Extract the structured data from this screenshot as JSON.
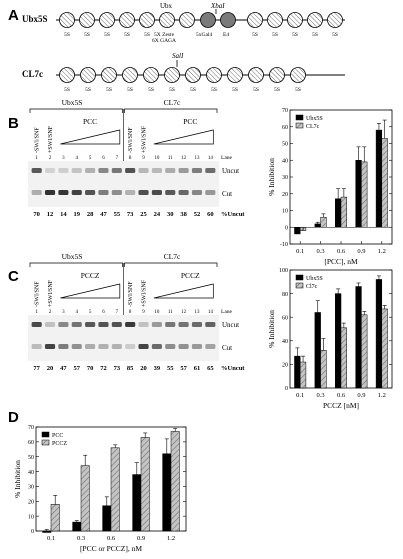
{
  "panel_a": {
    "letter": "A",
    "ubx5s": {
      "name": "Ubx5S",
      "ubx_label": "Ubx",
      "site_label": "XbaI",
      "nuc_label": "5S",
      "ubx_sub_labels": [
        "5X Zeste",
        "6X GAGA",
        "5xGal4",
        "E4"
      ]
    },
    "cl7c": {
      "name": "CL7c",
      "site_label": "SalI",
      "nuc_label": "5S"
    }
  },
  "panel_b": {
    "letter": "B",
    "gel": {
      "group_left": "Ubx5S",
      "group_right": "CL7c",
      "minus_swi": "-SWI/SNF",
      "plus_swi": "+SWI/SNF",
      "titrant": "PCC",
      "lane_word": "Lane",
      "lanes": [
        "1",
        "2",
        "3",
        "4",
        "5",
        "6",
        "7",
        "8",
        "9",
        "10",
        "11",
        "12",
        "13",
        "14"
      ],
      "band_uncut": "Uncut",
      "band_cut": "Cut",
      "pct_label": "%Uncut",
      "pct_values": [
        "70",
        "12",
        "14",
        "19",
        "28",
        "47",
        "55",
        "73",
        "25",
        "24",
        "30",
        "38",
        "52",
        "60"
      ]
    }
  },
  "panel_c": {
    "letter": "C",
    "gel": {
      "group_left": "Ubx5S",
      "group_right": "CL7c",
      "minus_swi": "-SWI/SNF",
      "plus_swi": "+SWI/SNF",
      "titrant": "PCCZ",
      "lane_word": "Lane",
      "lanes": [
        "1",
        "2",
        "3",
        "4",
        "5",
        "6",
        "7",
        "8",
        "9",
        "10",
        "11",
        "12",
        "13",
        "14"
      ],
      "band_uncut": "Uncut",
      "band_cut": "Cut",
      "pct_label": "%Uncut",
      "pct_values": [
        "77",
        "20",
        "47",
        "57",
        "70",
        "72",
        "73",
        "85",
        "20",
        "39",
        "55",
        "57",
        "61",
        "65"
      ]
    }
  },
  "panel_d": {
    "letter": "D"
  },
  "chart_data": [
    {
      "type": "bar",
      "panel": "B",
      "categories": [
        "0.1",
        "0.3",
        "0.6",
        "0.9",
        "1.2"
      ],
      "xlabel": "[PCC], nM",
      "ylabel": "% Inhibition",
      "ylim": [
        -10,
        70
      ],
      "yticks": [
        -10,
        0,
        10,
        20,
        30,
        40,
        50,
        60,
        70
      ],
      "legend": "top-left",
      "series": [
        {
          "name": "Ubx5S",
          "color": "#000000",
          "values": [
            -4,
            2,
            17,
            40,
            58
          ],
          "errors": [
            2,
            1,
            6,
            8,
            4
          ]
        },
        {
          "name": "CL7c",
          "color": "#a8a8a8",
          "values": [
            -2,
            6,
            18,
            39,
            53
          ],
          "errors": [
            2,
            2,
            5,
            9,
            11
          ]
        }
      ]
    },
    {
      "type": "bar",
      "panel": "C",
      "categories": [
        "0.1",
        "0.3",
        "0.6",
        "0.9",
        "1.2"
      ],
      "xlabel": "PCCZ [nM]",
      "ylabel": "% Inhibition",
      "ylim": [
        0,
        100
      ],
      "yticks": [
        0,
        20,
        40,
        60,
        80,
        100
      ],
      "legend": "top-left",
      "series": [
        {
          "name": "Ubx5S",
          "color": "#000000",
          "values": [
            27,
            64,
            80,
            86,
            92
          ],
          "errors": [
            7,
            10,
            4,
            3,
            3
          ]
        },
        {
          "name": "Cl7c",
          "color": "#a8a8a8",
          "values": [
            22,
            32,
            51,
            62,
            67
          ],
          "errors": [
            5,
            10,
            4,
            3,
            3
          ]
        }
      ]
    },
    {
      "type": "bar",
      "panel": "D",
      "categories": [
        "0.1",
        "0.3",
        "0.6",
        "0.9",
        "1.2"
      ],
      "xlabel": "[PCC or PCCZ], nM",
      "ylabel": "% Inhibition",
      "ylim": [
        0,
        70
      ],
      "yticks": [
        0,
        10,
        20,
        30,
        40,
        50,
        60,
        70
      ],
      "legend": "top-left",
      "series": [
        {
          "name": "PCC",
          "color": "#000000",
          "values": [
            -1,
            6,
            17,
            38,
            52
          ],
          "errors": [
            2,
            1,
            6,
            8,
            10
          ]
        },
        {
          "name": "PCCZ",
          "color": "#a8a8a8",
          "values": [
            18,
            44,
            56,
            63,
            67
          ],
          "errors": [
            6,
            7,
            2,
            3,
            2
          ]
        }
      ]
    }
  ]
}
